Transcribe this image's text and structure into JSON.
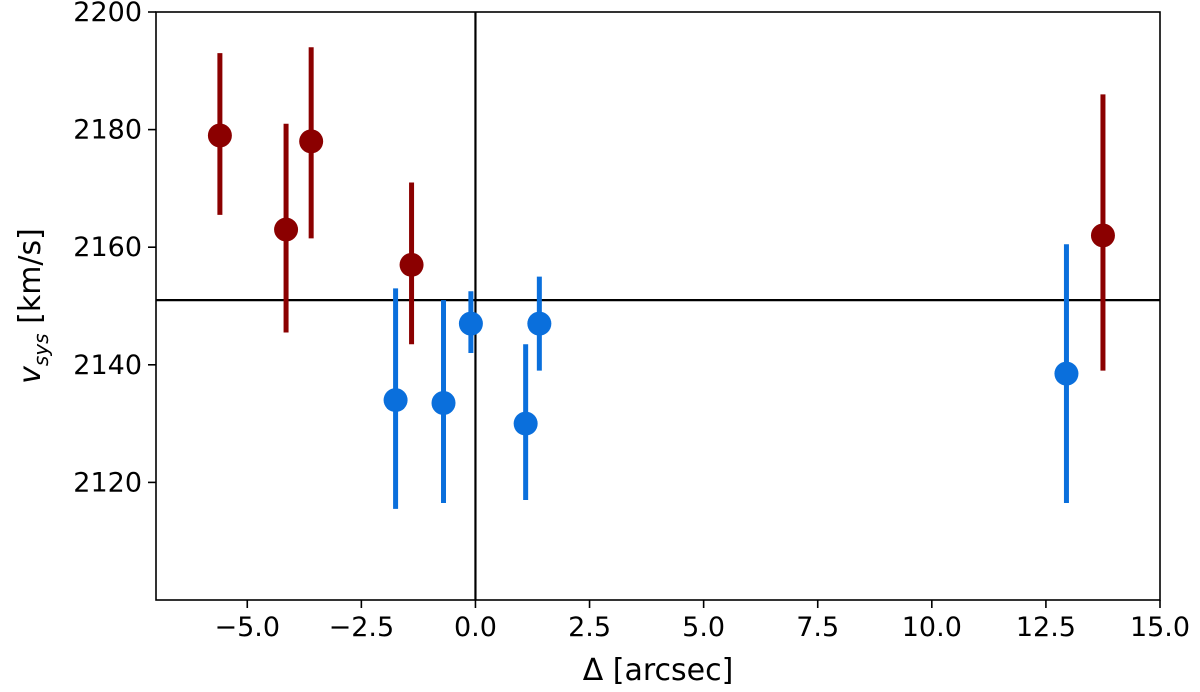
{
  "chart_data": {
    "type": "scatter",
    "xlabel": "Δ [arcsec]",
    "ylabel": {
      "var": "v",
      "sub": "sys",
      "unit": " [km/s]"
    },
    "xlim": [
      -7.0,
      15.0
    ],
    "ylim": [
      2100,
      2200
    ],
    "xticks": [
      -5.0,
      -2.5,
      0.0,
      2.5,
      5.0,
      7.5,
      10.0,
      12.5,
      15.0
    ],
    "xtick_labels": [
      "−5.0",
      "−2.5",
      "0.0",
      "2.5",
      "5.0",
      "7.5",
      "10.0",
      "12.5",
      "15.0"
    ],
    "yticks": [
      2120,
      2140,
      2160,
      2180,
      2200
    ],
    "ytick_labels": [
      "2120",
      "2140",
      "2160",
      "2180",
      "2200"
    ],
    "reference_lines": {
      "x": 0.0,
      "y": 2151
    },
    "grid": false,
    "series": [
      {
        "color": "#8b0000",
        "points": [
          {
            "x": -5.6,
            "y": 2179,
            "ylo": 2165.5,
            "yhi": 2193
          },
          {
            "x": -4.15,
            "y": 2163,
            "ylo": 2145.5,
            "yhi": 2181
          },
          {
            "x": -3.6,
            "y": 2178,
            "ylo": 2161.5,
            "yhi": 2194
          },
          {
            "x": -1.4,
            "y": 2157,
            "ylo": 2143.5,
            "yhi": 2171
          },
          {
            "x": 13.75,
            "y": 2162,
            "ylo": 2139,
            "yhi": 2186
          }
        ]
      },
      {
        "color": "#0a6fdc",
        "points": [
          {
            "x": -1.75,
            "y": 2134,
            "ylo": 2115.5,
            "yhi": 2153
          },
          {
            "x": -0.7,
            "y": 2133.5,
            "ylo": 2116.5,
            "yhi": 2151
          },
          {
            "x": -0.1,
            "y": 2147,
            "ylo": 2142,
            "yhi": 2152.5
          },
          {
            "x": 1.1,
            "y": 2130,
            "ylo": 2117,
            "yhi": 2143.5
          },
          {
            "x": 1.4,
            "y": 2147,
            "ylo": 2139,
            "yhi": 2155
          },
          {
            "x": 12.95,
            "y": 2138.5,
            "ylo": 2116.5,
            "yhi": 2160.5
          }
        ]
      }
    ]
  }
}
